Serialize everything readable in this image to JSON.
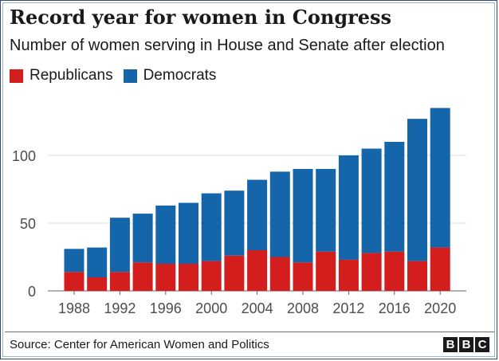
{
  "title": "Record year for women in Congress",
  "subtitle": "Number of women serving in House and Senate after election",
  "legend": [
    {
      "label": "Republicans",
      "color": "#d41e1e"
    },
    {
      "label": "Democrats",
      "color": "#1465a9"
    }
  ],
  "source": "Source: Center for American Women and Politics",
  "logo": [
    "B",
    "B",
    "C"
  ],
  "chart_data": {
    "type": "bar",
    "stacked": true,
    "categories": [
      "1988",
      "1990",
      "1992",
      "1994",
      "1996",
      "1998",
      "2000",
      "2002",
      "2004",
      "2006",
      "2008",
      "2010",
      "2012",
      "2014",
      "2016",
      "2018",
      "2020"
    ],
    "x_tick_labels": [
      "1988",
      "1992",
      "1996",
      "2000",
      "2004",
      "2008",
      "2012",
      "2016",
      "2020"
    ],
    "series": [
      {
        "name": "Republicans",
        "color": "#d41e1e",
        "values": [
          14,
          10,
          14,
          21,
          20,
          20,
          22,
          26,
          30,
          25,
          21,
          29,
          23,
          28,
          29,
          22,
          32
        ]
      },
      {
        "name": "Democrats",
        "color": "#1465a9",
        "values": [
          17,
          22,
          40,
          36,
          43,
          45,
          50,
          48,
          52,
          63,
          69,
          61,
          77,
          77,
          81,
          105,
          103
        ]
      }
    ],
    "y_ticks": [
      0,
      50,
      100
    ],
    "ylim": [
      0,
      140
    ],
    "grid": true,
    "legend_position": "top-left",
    "xlabel": "",
    "ylabel": ""
  }
}
